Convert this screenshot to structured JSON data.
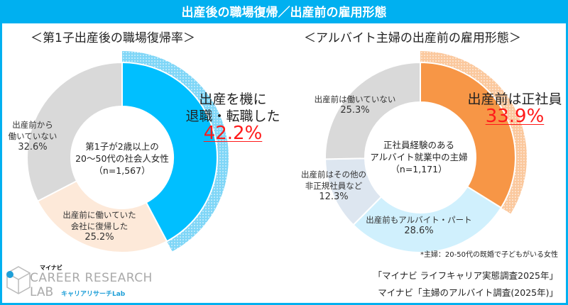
{
  "title": "出産後の職場復帰／出産前の雇用形態",
  "chart_data": [
    {
      "type": "pie",
      "variant": "donut",
      "title": "＜第1子出産後の職場復帰率＞",
      "center_label": [
        "第1子が2歳以上の",
        "20～50代の社会人女性",
        "（n=1,567）"
      ],
      "slices": [
        {
          "label": "出産を機に退職・転職した",
          "value": 42.2,
          "value_text": "42.2%",
          "color": "#00bfff",
          "highlight": true
        },
        {
          "label": "出産前に働いていた会社に復帰した",
          "value": 25.2,
          "value_text": "25.2%",
          "color": "#fde9d9"
        },
        {
          "label": "出産前から働いていない",
          "value": 32.6,
          "value_text": "32.6%",
          "color": "#d9d9d9"
        }
      ]
    },
    {
      "type": "pie",
      "variant": "donut",
      "title": "＜アルバイト主婦の出産前の雇用形態＞",
      "center_label": [
        "正社員経験のある",
        "アルバイト就業中の主婦",
        "（n=1,171）"
      ],
      "slices": [
        {
          "label": "出産前は正社員",
          "value": 33.9,
          "value_text": "33.9%",
          "color": "#f79646",
          "highlight": true
        },
        {
          "label": "出産前もアルバイト・パート",
          "value": 28.6,
          "value_text": "28.6%",
          "color": "#d0f0fd"
        },
        {
          "label": "出産前はその他の非正規社員など",
          "value": 12.3,
          "value_text": "12.3%",
          "color": "#dde6f0"
        },
        {
          "label": "出産前は働いていない",
          "value": 25.3,
          "value_text": "25.3%",
          "color": "#d9d9d9"
        }
      ]
    }
  ],
  "labels": {
    "l_hi_1": "出産を機に",
    "l_hi_2": "退職・転職した",
    "l_peach_1": "出産前に働いていた",
    "l_peach_2": "会社に復帰した",
    "l_gray_1": "出産前から",
    "l_gray_2": "働いていない",
    "r_gray": "出産前は働いていない",
    "r_other_1": "出産前はその他の",
    "r_other_2": "非正規社員など",
    "r_part": "出産前もアルバイト・パート"
  },
  "note": "*主婦：20-50代の既婚で子どもがいる女性",
  "sources": [
    "「マイナビ ライフキャリア実態調査2025年」",
    "マイナビ「主婦のアルバイト調査(2025年)」"
  ],
  "logo": {
    "brand": "マイナビ",
    "line1": "CAREER RESEARCH",
    "line2": "LAB",
    "sub": "キャリアリサーチLab"
  }
}
